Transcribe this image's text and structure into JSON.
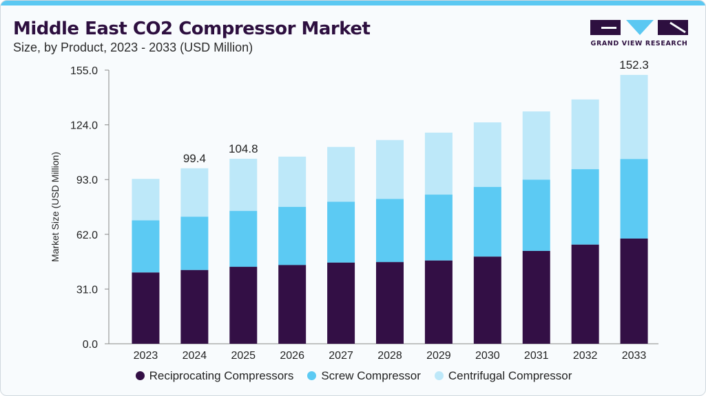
{
  "header": {
    "title": "Middle East CO2 Compressor Market",
    "subtitle": "Size, by Product, 2023 - 2033 (USD Million)"
  },
  "brand": {
    "name": "GRAND VIEW RESEARCH",
    "colors": {
      "dark": "#2d0f3f",
      "accent": "#5bc8f2"
    }
  },
  "chart_data": {
    "type": "bar",
    "stacked": true,
    "categories": [
      "2023",
      "2024",
      "2025",
      "2026",
      "2027",
      "2028",
      "2029",
      "2030",
      "2031",
      "2032",
      "2033"
    ],
    "series": [
      {
        "name": "Reciprocating Compressors",
        "color": "#330f45",
        "values": [
          40.4,
          41.8,
          43.6,
          44.6,
          46.0,
          46.3,
          47.2,
          49.4,
          52.6,
          56.2,
          59.6
        ]
      },
      {
        "name": "Screw Compressor",
        "color": "#5ccaf3",
        "values": [
          29.5,
          30.2,
          31.7,
          33.0,
          34.5,
          35.8,
          37.3,
          39.5,
          40.4,
          42.7,
          45.1
        ]
      },
      {
        "name": "Centrifugal Compressor",
        "color": "#bde8f9",
        "values": [
          23.5,
          27.4,
          29.5,
          28.4,
          31.0,
          33.3,
          35.1,
          36.5,
          38.6,
          39.5,
          47.6
        ]
      }
    ],
    "data_labels": {
      "2024": "99.4",
      "2025": "104.8",
      "2033": "152.3"
    },
    "ylabel": "Market Size (USD Million)",
    "xlabel": "",
    "ylim": [
      0,
      155
    ],
    "yticks": [
      "0.0",
      "31.0",
      "62.0",
      "93.0",
      "124.0",
      "155.0"
    ],
    "grid": false,
    "legend": "bottom"
  }
}
